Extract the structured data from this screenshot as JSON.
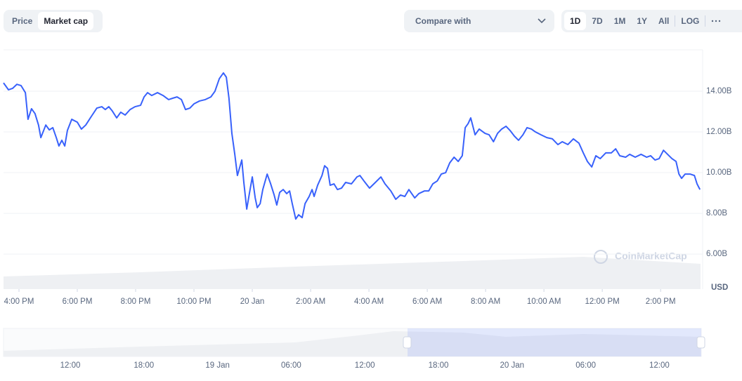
{
  "controls": {
    "metric_tabs": [
      "Price",
      "Market cap"
    ],
    "compare": "Compare with",
    "ranges": [
      "1D",
      "7D",
      "1M",
      "1Y",
      "All"
    ],
    "log": "LOG"
  },
  "watermark": "CoinMarketCap",
  "chart_data": {
    "type": "line",
    "color": "#3861fb",
    "grid": true,
    "y_axis_label": "USD",
    "xlim": [
      -0.53,
      23.37
    ],
    "ylim": [
      4.28,
      16
    ],
    "xticks": [
      {
        "value": 0,
        "label": "4:00 PM"
      },
      {
        "value": 2,
        "label": "6:00 PM"
      },
      {
        "value": 4,
        "label": "8:00 PM"
      },
      {
        "value": 6,
        "label": "10:00 PM"
      },
      {
        "value": 8,
        "label": "20 Jan"
      },
      {
        "value": 10,
        "label": "2:00 AM"
      },
      {
        "value": 12,
        "label": "4:00 AM"
      },
      {
        "value": 14,
        "label": "6:00 AM"
      },
      {
        "value": 16,
        "label": "8:00 AM"
      },
      {
        "value": 18,
        "label": "10:00 AM"
      },
      {
        "value": 20,
        "label": "12:00 PM"
      },
      {
        "value": 22,
        "label": "2:00 PM"
      }
    ],
    "yticks": [
      {
        "value": 6,
        "label": "6.00B"
      },
      {
        "value": 8,
        "label": "8.00B"
      },
      {
        "value": 10,
        "label": "10.00B"
      },
      {
        "value": 12,
        "label": "12.00B"
      },
      {
        "value": 14,
        "label": "14.00B"
      }
    ],
    "x": [
      -0.53,
      -0.36,
      -0.22,
      -0.07,
      0.07,
      0.22,
      0.31,
      0.43,
      0.55,
      0.67,
      0.75,
      0.92,
      1.04,
      1.16,
      1.28,
      1.37,
      1.47,
      1.57,
      1.66,
      1.81,
      2.0,
      2.14,
      2.29,
      2.48,
      2.67,
      2.84,
      2.96,
      3.08,
      3.2,
      3.35,
      3.49,
      3.64,
      3.81,
      3.98,
      4.17,
      4.29,
      4.41,
      4.55,
      4.75,
      4.94,
      5.13,
      5.28,
      5.42,
      5.57,
      5.71,
      5.86,
      6.0,
      6.19,
      6.39,
      6.58,
      6.72,
      6.87,
      7.01,
      7.11,
      7.2,
      7.3,
      7.4,
      7.49,
      7.64,
      7.71,
      7.81,
      7.9,
      8.0,
      8.1,
      8.17,
      8.27,
      8.36,
      8.51,
      8.63,
      8.75,
      8.84,
      8.94,
      9.06,
      9.18,
      9.28,
      9.37,
      9.49,
      9.59,
      9.71,
      9.81,
      9.95,
      10.05,
      10.12,
      10.24,
      10.39,
      10.48,
      10.58,
      10.67,
      10.8,
      10.92,
      11.06,
      11.2,
      11.4,
      11.59,
      11.69,
      11.83,
      12.02,
      12.22,
      12.41,
      12.55,
      12.75,
      12.92,
      13.08,
      13.23,
      13.37,
      13.57,
      13.71,
      13.9,
      14.05,
      14.19,
      14.34,
      14.48,
      14.63,
      14.77,
      14.92,
      15.06,
      15.2,
      15.3,
      15.4,
      15.49,
      15.64,
      15.78,
      15.98,
      16.12,
      16.27,
      16.41,
      16.55,
      16.7,
      16.84,
      16.99,
      17.13,
      17.28,
      17.42,
      17.57,
      17.71,
      17.9,
      18.1,
      18.29,
      18.48,
      18.63,
      18.82,
      19.01,
      19.2,
      19.35,
      19.49,
      19.64,
      19.78,
      19.93,
      20.12,
      20.31,
      20.46,
      20.6,
      20.8,
      20.94,
      21.13,
      21.33,
      21.52,
      21.66,
      21.81,
      21.95,
      22.1,
      22.24,
      22.39,
      22.53,
      22.63,
      22.72,
      22.84,
      23.01,
      23.16,
      23.25,
      23.35
    ],
    "values": [
      14.41,
      14.07,
      14.14,
      14.34,
      14.28,
      13.93,
      12.62,
      13.14,
      12.9,
      12.34,
      11.72,
      12.34,
      12.1,
      12.21,
      11.72,
      11.31,
      11.59,
      11.31,
      12.07,
      12.62,
      12.48,
      12.14,
      12.34,
      12.76,
      13.17,
      13.24,
      13.1,
      13.24,
      13.03,
      12.69,
      12.97,
      12.83,
      13.1,
      13.24,
      13.31,
      13.72,
      13.93,
      13.79,
      13.93,
      13.79,
      13.59,
      13.66,
      13.72,
      13.59,
      13.1,
      13.17,
      13.38,
      13.52,
      13.59,
      13.72,
      14.0,
      14.62,
      14.9,
      14.69,
      13.66,
      11.93,
      10.9,
      9.86,
      10.62,
      9.52,
      8.21,
      8.97,
      9.79,
      8.76,
      8.28,
      8.48,
      9.17,
      9.93,
      9.45,
      8.9,
      8.41,
      9.03,
      9.17,
      8.97,
      9.1,
      8.48,
      7.72,
      7.93,
      7.79,
      8.48,
      8.83,
      9.17,
      8.83,
      9.38,
      9.86,
      10.34,
      10.21,
      9.38,
      9.45,
      9.17,
      9.24,
      9.52,
      9.45,
      9.79,
      9.86,
      9.59,
      9.24,
      9.52,
      9.79,
      9.45,
      9.1,
      8.69,
      8.9,
      8.83,
      9.17,
      8.76,
      8.97,
      9.1,
      9.1,
      9.45,
      9.59,
      9.93,
      10.0,
      10.48,
      10.76,
      10.55,
      10.83,
      12.21,
      12.41,
      12.69,
      11.86,
      12.14,
      11.93,
      11.86,
      11.52,
      11.93,
      12.14,
      12.28,
      12.07,
      11.79,
      11.59,
      11.86,
      12.21,
      12.14,
      12.0,
      11.86,
      11.72,
      11.66,
      11.38,
      11.52,
      11.38,
      11.66,
      11.45,
      10.97,
      10.55,
      10.28,
      10.83,
      10.69,
      10.97,
      10.97,
      11.17,
      10.83,
      10.76,
      10.9,
      10.76,
      10.9,
      10.76,
      10.83,
      10.62,
      10.69,
      11.1,
      10.9,
      10.69,
      10.55,
      9.93,
      9.72,
      9.93,
      9.93,
      9.86,
      9.45,
      9.17
    ]
  },
  "navigator": {
    "labels": [
      "12:00",
      "18:00",
      "19 Jan",
      "06:00",
      "12:00",
      "18:00",
      "20 Jan",
      "06:00",
      "12:00"
    ]
  }
}
